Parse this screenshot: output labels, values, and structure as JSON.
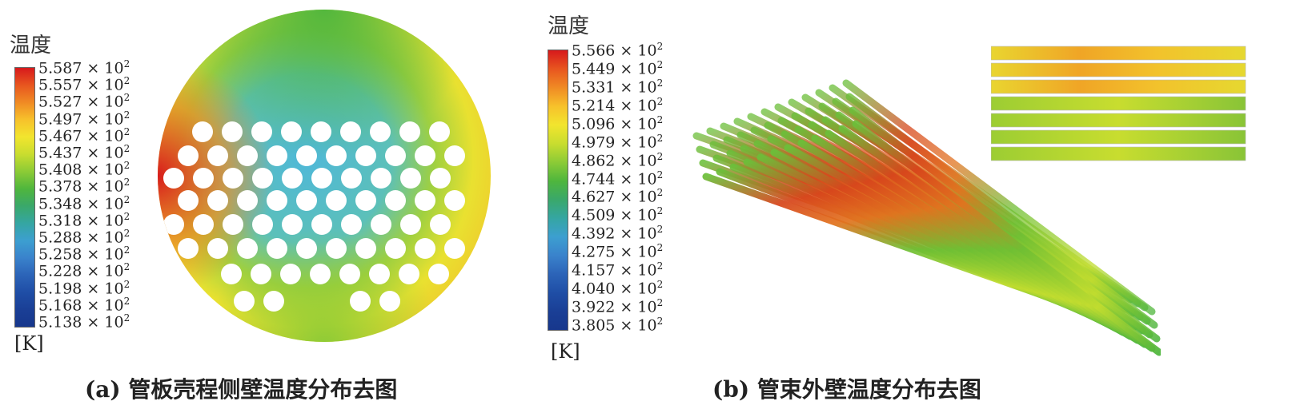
{
  "panel_a": {
    "legend_title": "温度",
    "unit": "[K]",
    "ticks": [
      "5.587",
      "5.557",
      "5.527",
      "5.497",
      "5.467",
      "5.437",
      "5.408",
      "5.378",
      "5.348",
      "5.318",
      "5.288",
      "5.258",
      "5.228",
      "5.198",
      "5.168",
      "5.138"
    ],
    "tick_exponent": "× 10",
    "tick_power": "2",
    "caption": "(a) 管板壳程侧壁温度分布去图"
  },
  "panel_b": {
    "legend_title": "温度",
    "unit": "[K]",
    "ticks": [
      "5.566",
      "5.449",
      "5.331",
      "5.214",
      "5.096",
      "4.979",
      "4.862",
      "4.744",
      "4.627",
      "4.509",
      "4.392",
      "4.275",
      "4.157",
      "4.040",
      "3.922",
      "3.805"
    ],
    "tick_exponent": "× 10",
    "tick_power": "2",
    "caption": "(b) 管束外壁温度分布去图"
  },
  "colormap": [
    "#d7191c",
    "#e8561f",
    "#f08a24",
    "#f7c12b",
    "#f2e52e",
    "#c9dd2f",
    "#8ccb36",
    "#4fb63d",
    "#3aa86a",
    "#35a6a2",
    "#3c9fd0",
    "#3a83cc",
    "#2c64b8",
    "#1f4ea6",
    "#1a3f96",
    "#17378c"
  ]
}
